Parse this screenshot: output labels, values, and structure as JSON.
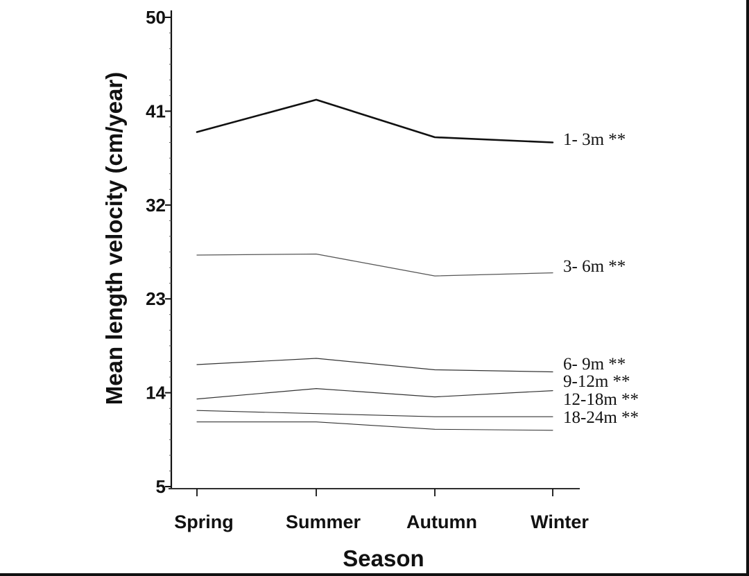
{
  "chart_data": {
    "type": "line",
    "xlabel": "Season",
    "ylabel": "Mean length velocity (cm/year)",
    "categories": [
      "Spring",
      "Summer",
      "Autumn",
      "Winter"
    ],
    "yticks": [
      "5",
      "14",
      "23",
      "32",
      "41",
      "50"
    ],
    "ylim": [
      5,
      50
    ],
    "grid": false,
    "series": [
      {
        "name": "1-  3m **",
        "values": [
          39.0,
          42.1,
          38.5,
          38.0
        ],
        "color": "#111111"
      },
      {
        "name": "3-  6m **",
        "values": [
          27.2,
          27.3,
          25.2,
          25.5
        ],
        "color": "#555555"
      },
      {
        "name": "6-  9m **",
        "values": [
          16.7,
          17.3,
          16.2,
          16.0
        ],
        "color": "#333333"
      },
      {
        "name": "9-12m **",
        "values": [
          13.4,
          14.4,
          13.6,
          14.2
        ],
        "color": "#333333"
      },
      {
        "name": "12-18m **",
        "values": [
          12.3,
          12.0,
          11.7,
          11.7
        ],
        "color": "#333333"
      },
      {
        "name": "18-24m **",
        "values": [
          11.2,
          11.2,
          10.5,
          10.4
        ],
        "color": "#333333"
      }
    ]
  }
}
